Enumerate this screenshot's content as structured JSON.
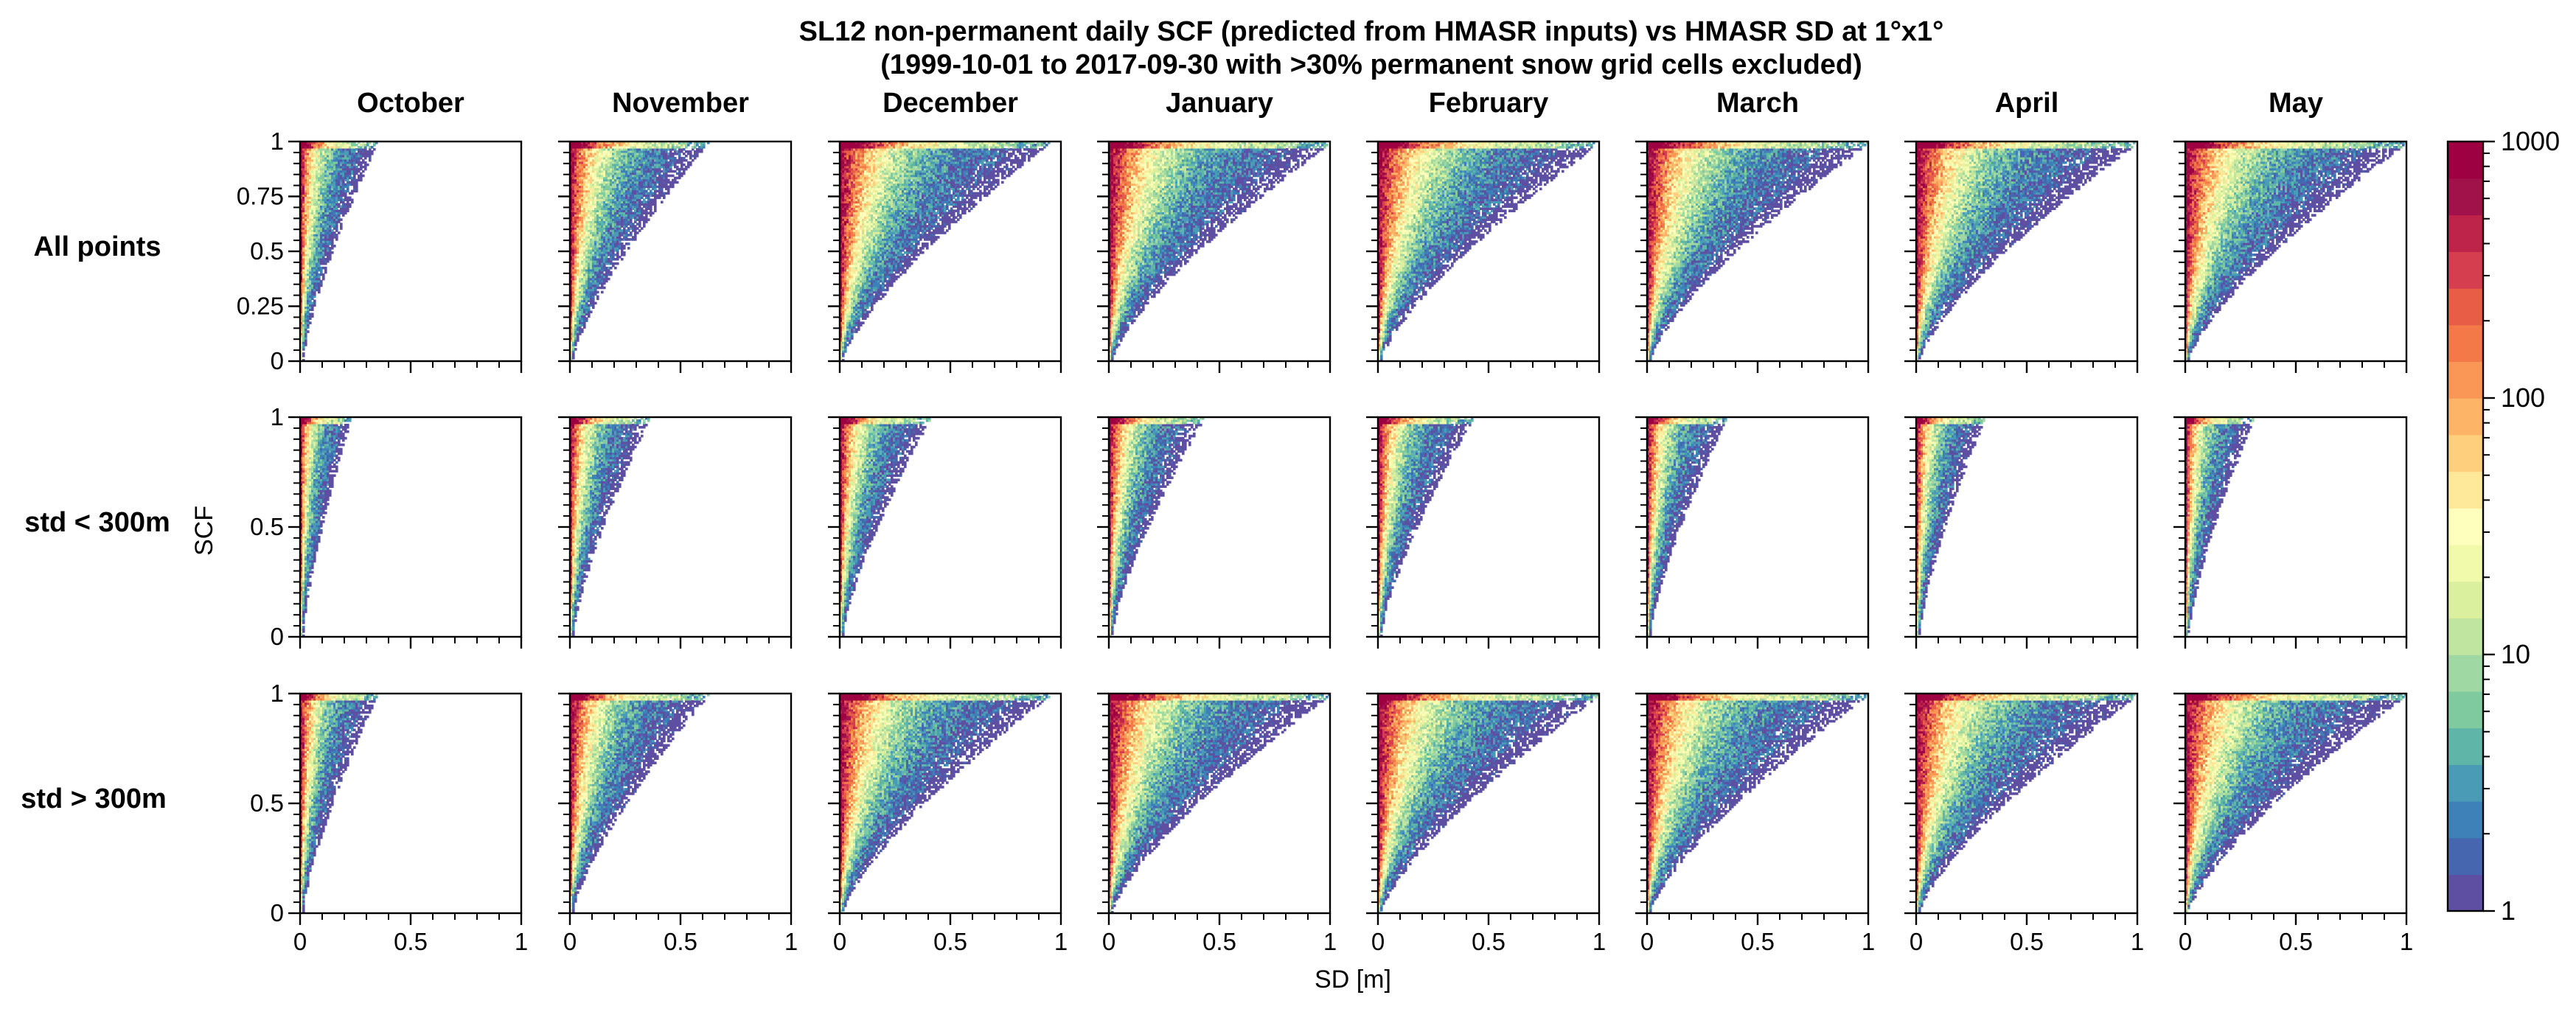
{
  "chart_data": {
    "type": "heatmap",
    "title_line1": "SL12 non-permanent daily SCF (predicted from HMASR inputs) vs HMASR SD at 1°x1°",
    "title_line2": "(1999-10-01 to 2017-09-30 with >30% permanent snow grid cells excluded)",
    "columns": [
      "October",
      "November",
      "December",
      "January",
      "February",
      "March",
      "April",
      "May"
    ],
    "rows": [
      "All points",
      "std < 300m",
      "std > 300m"
    ],
    "xlabel": "SD [m]",
    "ylabel": "SCF",
    "xlim": [
      0,
      1
    ],
    "ylim": [
      0,
      1
    ],
    "xticks": [
      "0",
      "0.5",
      "1"
    ],
    "yticks_row1": [
      "0",
      "0.25",
      "0.5",
      "0.75",
      "1"
    ],
    "yticks_other": [
      "0",
      "0.5",
      "1"
    ],
    "colorbar": {
      "scale": "log",
      "range": [
        1,
        1000
      ],
      "ticks": [
        "1",
        "10",
        "100",
        "1000"
      ],
      "colormap": "Spectral_r",
      "levels": 21,
      "colors": [
        "#5e4fa2",
        "#4667af",
        "#3d81b8",
        "#4a9bb5",
        "#60b5a9",
        "#7fca9f",
        "#a0d8a4",
        "#c0e5a0",
        "#dbf09e",
        "#f1f9aa",
        "#fefebd",
        "#fee899",
        "#fed07e",
        "#fdb466",
        "#fa9656",
        "#f47948",
        "#e75d45",
        "#d53e4f",
        "#be2449",
        "#a2124a",
        "#9e0142"
      ]
    },
    "panel_spread": {
      "All points": [
        0.34,
        0.62,
        0.95,
        1.0,
        1.0,
        1.0,
        1.0,
        1.0
      ],
      "std < 300m": [
        0.22,
        0.35,
        0.4,
        0.42,
        0.42,
        0.35,
        0.3,
        0.3
      ],
      "std > 300m": [
        0.34,
        0.62,
        0.95,
        1.0,
        1.0,
        1.0,
        1.0,
        1.0
      ]
    },
    "panel_floor_slope": {
      "All points": [
        0,
        0,
        0.05,
        0.12,
        0.28,
        0.3,
        0.3,
        0.24
      ],
      "std < 300m": [
        0,
        0,
        0,
        0,
        0,
        0,
        0,
        0
      ],
      "std > 300m": [
        0,
        0,
        0.05,
        0.12,
        0.28,
        0.3,
        0.3,
        0.24
      ]
    }
  }
}
